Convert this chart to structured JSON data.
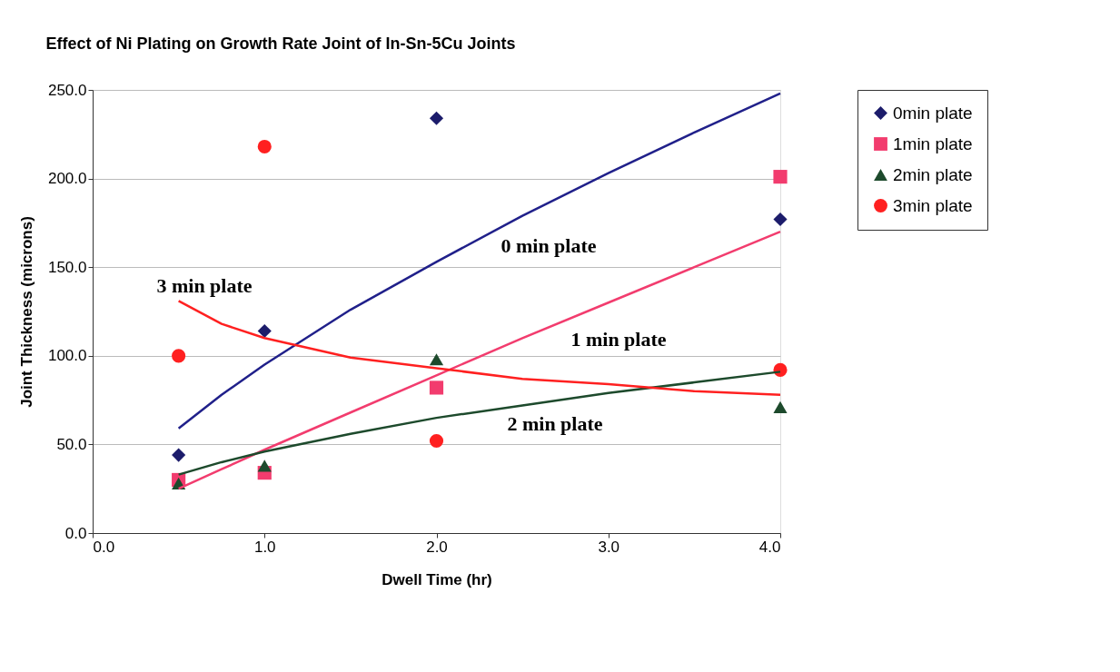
{
  "chart_data": {
    "type": "scatter",
    "title": "Effect of Ni Plating on Growth Rate Joint of In-Sn-5Cu Joints",
    "xlabel": "Dwell Time (hr)",
    "ylabel": "Joint Thickness (microns)",
    "x": [
      0.5,
      1,
      2,
      4
    ],
    "series": [
      {
        "name": "0min plate",
        "color": "#1c1c6b",
        "marker": "diamond",
        "values": [
          44,
          114,
          234,
          177
        ]
      },
      {
        "name": "1min plate",
        "color": "#f23c6e",
        "marker": "square",
        "values": [
          30,
          34,
          82,
          201
        ]
      },
      {
        "name": "2min plate",
        "color": "#1d4a2c",
        "marker": "triangle",
        "values": [
          28,
          38,
          98,
          71
        ]
      },
      {
        "name": "3min plate",
        "color": "#ff2020",
        "marker": "circle",
        "values": [
          100,
          218,
          52,
          92
        ]
      },
      {
        "type": "line",
        "color": "#20208a",
        "x": [
          0.5,
          0.75,
          1,
          1.5,
          2,
          2.5,
          3,
          3.5,
          4
        ],
        "values": [
          59,
          78,
          95,
          126,
          153,
          179,
          203,
          226,
          248
        ]
      },
      {
        "type": "line",
        "color": "#f23c6e",
        "x": [
          0.5,
          0.75,
          1,
          1.5,
          2,
          2.5,
          3,
          3.5,
          4
        ],
        "values": [
          25,
          36,
          47,
          68,
          89,
          110,
          130,
          150,
          170
        ]
      },
      {
        "type": "line",
        "color": "#1d4a2c",
        "x": [
          0.5,
          0.75,
          1,
          1.5,
          2,
          2.5,
          3,
          3.5,
          4
        ],
        "values": [
          33,
          40,
          46,
          56,
          65,
          72,
          79,
          85,
          91
        ]
      },
      {
        "type": "line",
        "color": "#ff2020",
        "x": [
          0.5,
          0.75,
          1,
          1.5,
          2,
          2.5,
          3,
          3.5,
          4
        ],
        "values": [
          131,
          118,
          110,
          99,
          93,
          87,
          84,
          80,
          78
        ]
      }
    ],
    "annotations": [
      "0 min plate",
      "1 min plate",
      "2 min plate",
      "3 min plate"
    ],
    "xlim": [
      0,
      4
    ],
    "xticks": [
      {
        "value": 0,
        "label": "0.0"
      },
      {
        "value": 1,
        "label": "1.0"
      },
      {
        "value": 2,
        "label": "2.0"
      },
      {
        "value": 3,
        "label": "3.0"
      },
      {
        "value": 4,
        "label": "4.0"
      }
    ],
    "ylim": [
      0,
      250
    ],
    "yticks": [
      {
        "value": 0,
        "label": "0.0"
      },
      {
        "value": 50,
        "label": "50.0"
      },
      {
        "value": 100,
        "label": "100.0"
      },
      {
        "value": 150,
        "label": "150.0"
      },
      {
        "value": 200,
        "label": "200.0"
      },
      {
        "value": 250,
        "label": "250.0"
      }
    ],
    "grid": "y",
    "legend": "right"
  }
}
